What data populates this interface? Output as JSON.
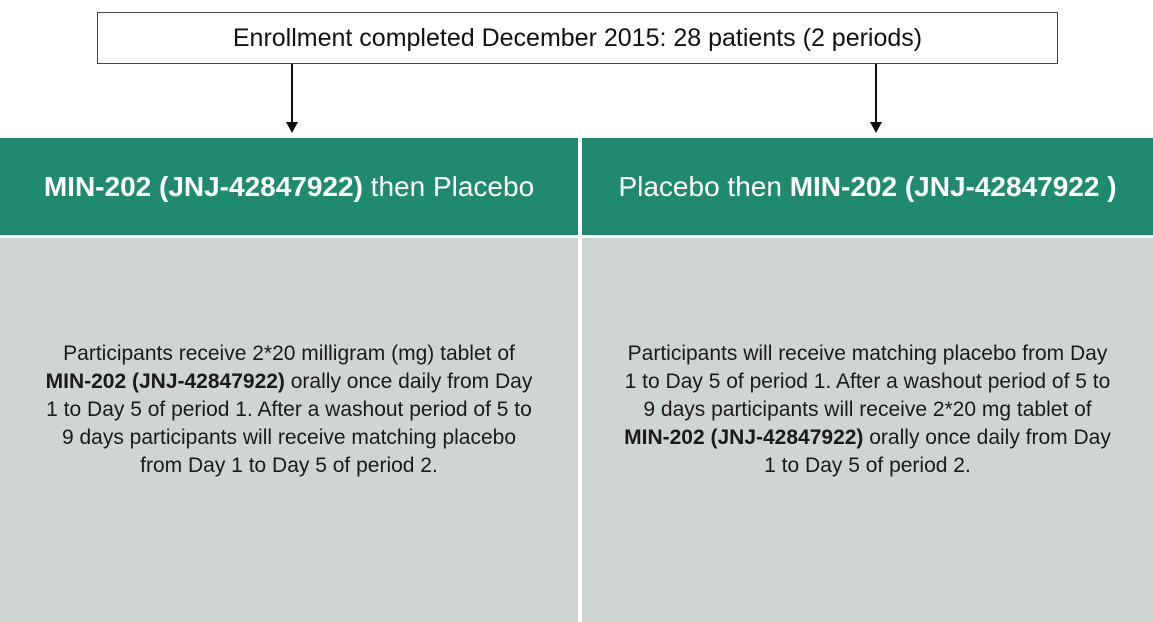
{
  "enrollment": "Enrollment completed December 2015: 28 patients (2 periods)",
  "arms": [
    {
      "title": [
        {
          "text": "MIN-202 (JNJ-42847922)",
          "bold": true
        },
        {
          "text": " then Placebo",
          "bold": false
        }
      ],
      "description": [
        {
          "text": "Participants receive 2*20 milligram (mg) tablet of ",
          "bold": false
        },
        {
          "text": "MIN-202 (JNJ-42847922)",
          "bold": true
        },
        {
          "text": " orally once daily from Day 1 to Day 5 of period 1. After a washout period of 5 to 9 days participants will receive matching placebo from Day 1 to Day 5 of period 2.",
          "bold": false
        }
      ]
    },
    {
      "title": [
        {
          "text": "Placebo then ",
          "bold": false
        },
        {
          "text": "MIN-202 (JNJ-42847922 )",
          "bold": true
        }
      ],
      "description": [
        {
          "text": "Participants will receive matching placebo from Day 1 to Day 5 of period 1. After a washout period of 5 to 9 days participants will receive 2*20 mg tablet of ",
          "bold": false
        },
        {
          "text": "MIN-202 (JNJ-42847922)",
          "bold": true
        },
        {
          "text": " orally once daily from Day 1 to Day 5 of period 2.",
          "bold": false
        }
      ]
    }
  ]
}
